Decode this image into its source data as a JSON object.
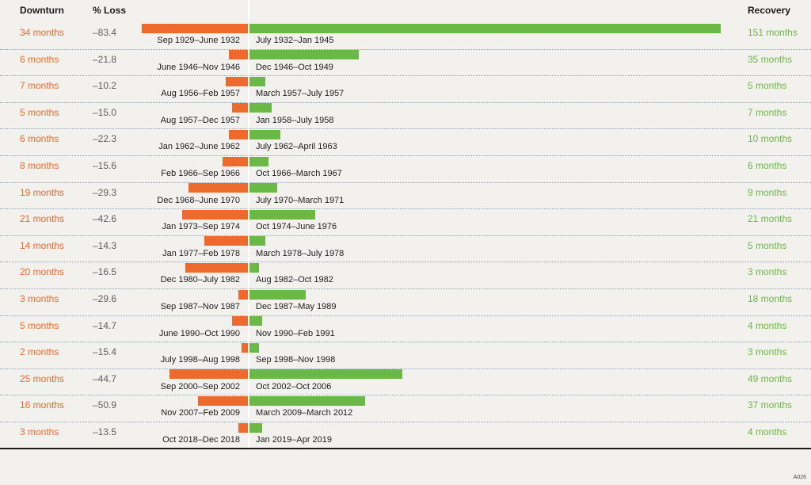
{
  "chart_data": {
    "type": "bar",
    "headers": {
      "downturn": "Downturn",
      "loss": "% Loss",
      "recovery": "Recovery"
    },
    "rows": [
      {
        "downturn_label": "34 months",
        "downturn_months": 34,
        "loss_label": "–83.4",
        "loss": -83.4,
        "downturn_period": "Sep 1929–June 1932",
        "recovery_period": "July 1932–Jan 1945",
        "recovery_label": "151 months",
        "recovery_months": 151
      },
      {
        "downturn_label": "6 months",
        "downturn_months": 6,
        "loss_label": "–21.8",
        "loss": -21.8,
        "downturn_period": "June 1946–Nov 1946",
        "recovery_period": "Dec 1946–Oct 1949",
        "recovery_label": "35 months",
        "recovery_months": 35
      },
      {
        "downturn_label": "7 months",
        "downturn_months": 7,
        "loss_label": "–10.2",
        "loss": -10.2,
        "downturn_period": "Aug 1956–Feb 1957",
        "recovery_period": "March 1957–July 1957",
        "recovery_label": "5 months",
        "recovery_months": 5
      },
      {
        "downturn_label": "5 months",
        "downturn_months": 5,
        "loss_label": "–15.0",
        "loss": -15.0,
        "downturn_period": "Aug 1957–Dec 1957",
        "recovery_period": "Jan 1958–July 1958",
        "recovery_label": "7 months",
        "recovery_months": 7
      },
      {
        "downturn_label": "6 months",
        "downturn_months": 6,
        "loss_label": "–22.3",
        "loss": -22.3,
        "downturn_period": "Jan 1962–June 1962",
        "recovery_period": "July 1962–April 1963",
        "recovery_label": "10 months",
        "recovery_months": 10
      },
      {
        "downturn_label": "8 months",
        "downturn_months": 8,
        "loss_label": "–15.6",
        "loss": -15.6,
        "downturn_period": "Feb 1966–Sep 1966",
        "recovery_period": "Oct 1966–March 1967",
        "recovery_label": "6 months",
        "recovery_months": 6
      },
      {
        "downturn_label": "19 months",
        "downturn_months": 19,
        "loss_label": "–29.3",
        "loss": -29.3,
        "downturn_period": "Dec 1968–June 1970",
        "recovery_period": "July 1970–March 1971",
        "recovery_label": "9 months",
        "recovery_months": 9
      },
      {
        "downturn_label": "21 months",
        "downturn_months": 21,
        "loss_label": "–42.6",
        "loss": -42.6,
        "downturn_period": "Jan 1973–Sep 1974",
        "recovery_period": "Oct 1974–June 1976",
        "recovery_label": "21 months",
        "recovery_months": 21
      },
      {
        "downturn_label": "14 months",
        "downturn_months": 14,
        "loss_label": "–14.3",
        "loss": -14.3,
        "downturn_period": "Jan 1977–Feb 1978",
        "recovery_period": "March 1978–July 1978",
        "recovery_label": "5 months",
        "recovery_months": 5
      },
      {
        "downturn_label": "20 months",
        "downturn_months": 20,
        "loss_label": "–16.5",
        "loss": -16.5,
        "downturn_period": "Dec 1980–July 1982",
        "recovery_period": "Aug 1982–Oct 1982",
        "recovery_label": "3 months",
        "recovery_months": 3
      },
      {
        "downturn_label": "3 months",
        "downturn_months": 3,
        "loss_label": "–29.6",
        "loss": -29.6,
        "downturn_period": "Sep 1987–Nov 1987",
        "recovery_period": "Dec 1987–May 1989",
        "recovery_label": "18 months",
        "recovery_months": 18
      },
      {
        "downturn_label": "5 months",
        "downturn_months": 5,
        "loss_label": "–14.7",
        "loss": -14.7,
        "downturn_period": "June 1990–Oct 1990",
        "recovery_period": "Nov 1990–Feb 1991",
        "recovery_label": "4 months",
        "recovery_months": 4
      },
      {
        "downturn_label": "2 months",
        "downturn_months": 2,
        "loss_label": "–15.4",
        "loss": -15.4,
        "downturn_period": "July 1998–Aug 1998",
        "recovery_period": "Sep 1998–Nov 1998",
        "recovery_label": "3 months",
        "recovery_months": 3
      },
      {
        "downturn_label": "25 months",
        "downturn_months": 25,
        "loss_label": "–44.7",
        "loss": -44.7,
        "downturn_period": "Sep 2000–Sep 2002",
        "recovery_period": "Oct 2002–Oct 2006",
        "recovery_label": "49 months",
        "recovery_months": 49
      },
      {
        "downturn_label": "16 months",
        "downturn_months": 16,
        "loss_label": "–50.9",
        "loss": -50.9,
        "downturn_period": "Nov 2007–Feb 2009",
        "recovery_period": "March 2009–March 2012",
        "recovery_label": "37 months",
        "recovery_months": 37
      },
      {
        "downturn_label": "3 months",
        "downturn_months": 3,
        "loss_label": "–13.5",
        "loss": -13.5,
        "downturn_period": "Oct 2018–Dec 2018",
        "recovery_period": "Jan 2019–Apr 2019",
        "recovery_label": "4 months",
        "recovery_months": 4
      }
    ],
    "colors": {
      "downturn": "#ee6a2c",
      "recovery": "#6ab845",
      "loss_text": "#5e5e5e",
      "separator": "#8aa0b8"
    }
  },
  "footer": {
    "code": "A026"
  }
}
